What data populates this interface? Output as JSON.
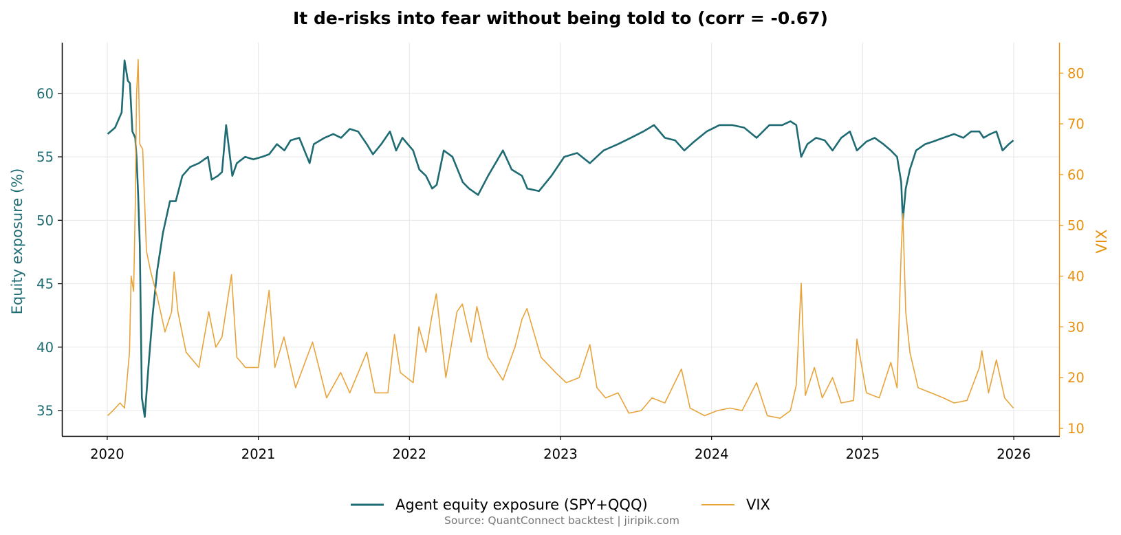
{
  "chart_data": {
    "type": "line",
    "title": "It de-risks into fear without being told to (corr = -0.67)",
    "source": "Source: QuantConnect backtest  |  jiripik.com",
    "x_axis": {
      "ticks": [
        "2020",
        "2021",
        "2022",
        "2023",
        "2024",
        "2025",
        "2026"
      ],
      "range": [
        2019.7,
        2026.3
      ]
    },
    "y_left": {
      "label": "Equity exposure (%)",
      "range": [
        33,
        64
      ],
      "ticks": [
        "35",
        "40",
        "45",
        "50",
        "55",
        "60"
      ]
    },
    "y_right": {
      "label": "VIX",
      "range": [
        8.5,
        86
      ],
      "ticks": [
        "10",
        "20",
        "30",
        "40",
        "50",
        "60",
        "70",
        "80"
      ]
    },
    "grid": true,
    "legend_position": "bottom-center",
    "series": [
      {
        "name": "Agent equity exposure (SPY+QQQ)",
        "axis": "left",
        "color": "#1e6b73",
        "x": [
          "2020-01-02",
          "2020-01-20",
          "2020-02-05",
          "2020-02-12",
          "2020-02-20",
          "2020-02-25",
          "2020-03-02",
          "2020-03-09",
          "2020-03-12",
          "2020-03-16",
          "2020-03-20",
          "2020-03-25",
          "2020-04-01",
          "2020-04-10",
          "2020-04-20",
          "2020-05-01",
          "2020-05-15",
          "2020-06-01",
          "2020-06-15",
          "2020-07-01",
          "2020-07-20",
          "2020-08-10",
          "2020-09-01",
          "2020-09-10",
          "2020-09-25",
          "2020-10-05",
          "2020-10-15",
          "2020-10-30",
          "2020-11-10",
          "2020-11-30",
          "2020-12-20",
          "2021-01-10",
          "2021-01-27",
          "2021-02-15",
          "2021-03-05",
          "2021-03-20",
          "2021-04-10",
          "2021-05-05",
          "2021-05-15",
          "2021-06-10",
          "2021-07-01",
          "2021-07-20",
          "2021-08-10",
          "2021-08-30",
          "2021-09-20",
          "2021-10-05",
          "2021-10-25",
          "2021-11-15",
          "2021-11-30",
          "2021-12-15",
          "2022-01-10",
          "2022-01-25",
          "2022-02-10",
          "2022-02-25",
          "2022-03-08",
          "2022-03-25",
          "2022-04-15",
          "2022-05-10",
          "2022-05-25",
          "2022-06-16",
          "2022-07-10",
          "2022-08-15",
          "2022-09-05",
          "2022-09-30",
          "2022-10-13",
          "2022-11-10",
          "2022-12-10",
          "2023-01-10",
          "2023-02-10",
          "2023-03-13",
          "2023-04-15",
          "2023-05-20",
          "2023-06-20",
          "2023-07-20",
          "2023-08-15",
          "2023-09-10",
          "2023-10-05",
          "2023-10-27",
          "2023-11-20",
          "2023-12-20",
          "2024-01-20",
          "2024-02-20",
          "2024-03-20",
          "2024-04-19",
          "2024-05-20",
          "2024-06-20",
          "2024-07-10",
          "2024-07-24",
          "2024-08-05",
          "2024-08-20",
          "2024-09-10",
          "2024-10-01",
          "2024-10-20",
          "2024-11-10",
          "2024-12-01",
          "2024-12-18",
          "2025-01-10",
          "2025-01-30",
          "2025-02-20",
          "2025-03-10",
          "2025-03-25",
          "2025-04-04",
          "2025-04-08",
          "2025-04-15",
          "2025-04-25",
          "2025-05-10",
          "2025-06-01",
          "2025-06-20",
          "2025-07-15",
          "2025-08-10",
          "2025-09-01",
          "2025-09-20",
          "2025-10-10",
          "2025-10-20",
          "2025-11-05",
          "2025-11-20",
          "2025-12-05",
          "2025-12-20",
          "2025-12-31"
        ],
        "y": [
          56.8,
          57.3,
          58.5,
          62.6,
          61.0,
          60.8,
          57.0,
          56.5,
          55.0,
          52.0,
          48.0,
          36.0,
          34.5,
          38.5,
          42.5,
          46.0,
          49.0,
          51.5,
          51.5,
          53.5,
          54.2,
          54.5,
          55.0,
          53.2,
          53.5,
          53.8,
          57.5,
          53.5,
          54.5,
          55.0,
          54.8,
          55.0,
          55.2,
          56.0,
          55.5,
          56.3,
          56.5,
          54.5,
          56.0,
          56.5,
          56.8,
          56.5,
          57.2,
          57.0,
          56.0,
          55.2,
          56.0,
          57.0,
          55.5,
          56.5,
          55.5,
          54.0,
          53.5,
          52.5,
          52.8,
          55.5,
          55.0,
          53.0,
          52.5,
          52.0,
          53.5,
          55.5,
          54.0,
          53.5,
          52.5,
          52.3,
          53.5,
          55.0,
          55.3,
          54.5,
          55.5,
          56.0,
          56.5,
          57.0,
          57.5,
          56.5,
          56.3,
          55.5,
          56.2,
          57.0,
          57.5,
          57.5,
          57.3,
          56.5,
          57.5,
          57.5,
          57.8,
          57.5,
          55.0,
          56.0,
          56.5,
          56.3,
          55.5,
          56.5,
          57.0,
          55.5,
          56.2,
          56.5,
          56.0,
          55.5,
          55.0,
          53.0,
          50.0,
          52.5,
          54.0,
          55.5,
          56.0,
          56.2,
          56.5,
          56.8,
          56.5,
          57.0,
          57.0,
          56.5,
          56.8,
          57.0,
          55.5,
          56.0,
          56.3
        ]
      },
      {
        "name": "VIX",
        "axis": "right",
        "color": "#e8a33a",
        "x": [
          "2020-01-02",
          "2020-01-15",
          "2020-02-01",
          "2020-02-12",
          "2020-02-24",
          "2020-02-28",
          "2020-03-05",
          "2020-03-09",
          "2020-03-12",
          "2020-03-16",
          "2020-03-20",
          "2020-03-27",
          "2020-04-05",
          "2020-04-15",
          "2020-05-01",
          "2020-05-20",
          "2020-06-05",
          "2020-06-11",
          "2020-06-20",
          "2020-07-10",
          "2020-08-10",
          "2020-09-03",
          "2020-09-20",
          "2020-10-05",
          "2020-10-28",
          "2020-11-10",
          "2020-12-01",
          "2021-01-01",
          "2021-01-27",
          "2021-02-10",
          "2021-03-04",
          "2021-04-01",
          "2021-05-12",
          "2021-06-15",
          "2021-07-19",
          "2021-08-10",
          "2021-09-20",
          "2021-10-10",
          "2021-11-10",
          "2021-11-26",
          "2021-12-10",
          "2022-01-10",
          "2022-01-24",
          "2022-02-10",
          "2022-02-24",
          "2022-03-07",
          "2022-03-30",
          "2022-04-26",
          "2022-05-09",
          "2022-05-30",
          "2022-06-13",
          "2022-07-10",
          "2022-08-15",
          "2022-09-13",
          "2022-09-30",
          "2022-10-12",
          "2022-11-15",
          "2022-12-20",
          "2023-01-15",
          "2023-02-15",
          "2023-03-13",
          "2023-03-30",
          "2023-04-20",
          "2023-05-20",
          "2023-06-15",
          "2023-07-15",
          "2023-08-10",
          "2023-09-10",
          "2023-10-20",
          "2023-11-10",
          "2023-12-15",
          "2024-01-15",
          "2024-02-15",
          "2024-03-15",
          "2024-04-19",
          "2024-05-15",
          "2024-06-15",
          "2024-07-10",
          "2024-07-24",
          "2024-08-05",
          "2024-08-15",
          "2024-09-06",
          "2024-09-25",
          "2024-10-20",
          "2024-11-10",
          "2024-12-10",
          "2024-12-18",
          "2025-01-10",
          "2025-02-10",
          "2025-03-10",
          "2025-03-25",
          "2025-04-04",
          "2025-04-08",
          "2025-04-15",
          "2025-04-25",
          "2025-05-15",
          "2025-06-15",
          "2025-07-15",
          "2025-08-10",
          "2025-09-10",
          "2025-10-10",
          "2025-10-16",
          "2025-11-01",
          "2025-11-20",
          "2025-12-10",
          "2025-12-31"
        ],
        "y": [
          12.5,
          13.5,
          15.0,
          14.0,
          25.0,
          40.0,
          37.0,
          54.0,
          75.5,
          82.7,
          66.0,
          65.0,
          45.0,
          41.0,
          36.0,
          29.0,
          33.0,
          40.8,
          33.0,
          25.0,
          22.0,
          33.0,
          26.0,
          28.0,
          40.3,
          24.0,
          22.0,
          22.0,
          37.2,
          22.0,
          28.0,
          18.0,
          27.0,
          16.0,
          21.0,
          17.0,
          25.0,
          17.0,
          17.0,
          28.5,
          21.0,
          19.0,
          30.0,
          25.0,
          32.0,
          36.5,
          20.0,
          33.0,
          34.5,
          27.0,
          34.0,
          24.0,
          19.5,
          26.0,
          31.5,
          33.6,
          24.0,
          21.0,
          19.0,
          20.0,
          26.5,
          18.0,
          16.0,
          17.0,
          13.0,
          13.5,
          16.0,
          15.0,
          21.7,
          14.0,
          12.5,
          13.5,
          14.0,
          13.5,
          19.0,
          12.5,
          12.0,
          13.5,
          18.5,
          38.6,
          16.5,
          22.0,
          16.0,
          20.0,
          15.0,
          15.5,
          27.6,
          17.0,
          16.0,
          23.0,
          18.0,
          45.0,
          52.3,
          33.0,
          25.0,
          18.0,
          17.0,
          16.0,
          15.0,
          15.5,
          22.0,
          25.3,
          17.0,
          23.5,
          16.0,
          14.0
        ]
      }
    ]
  }
}
